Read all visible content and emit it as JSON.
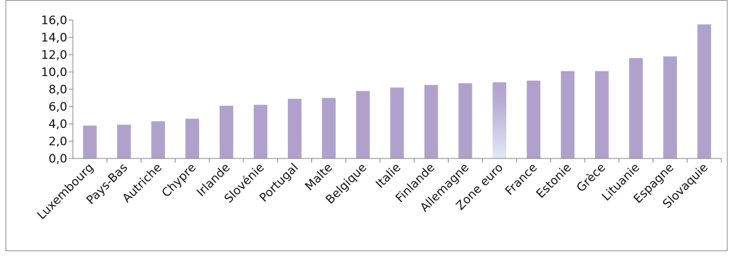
{
  "chart_data": {
    "type": "bar",
    "categories": [
      "Luxembourg",
      "Pays-Bas",
      "Autriche",
      "Chypre",
      "Irlande",
      "Slovénie",
      "Portugal",
      "Malte",
      "Belgique",
      "Italie",
      "Finlande",
      "Allemagne",
      "Zone euro",
      "France",
      "Estonie",
      "Grèce",
      "Lituanie",
      "Espagne",
      "Slovaquie"
    ],
    "values": [
      3.8,
      3.9,
      4.3,
      4.6,
      6.1,
      6.2,
      6.9,
      7.0,
      7.8,
      8.2,
      8.5,
      8.7,
      8.8,
      9.0,
      10.1,
      10.1,
      11.6,
      11.8,
      15.5
    ],
    "ylim": [
      0,
      16
    ],
    "yticks": [
      "0,0",
      "2,0",
      "4,0",
      "6,0",
      "8,0",
      "10,0",
      "12,0",
      "14,0",
      "16,0"
    ],
    "ytick_step": 2,
    "grid": false,
    "legend": "none",
    "title": "",
    "xlabel": "",
    "ylabel": "",
    "colors": {
      "bar": "#b0a1cc",
      "highlight_top": "#b3a4cf",
      "highlight_bottom": "#dfe9f7",
      "axis": "#808080",
      "frame": "#8c8c8c"
    },
    "highlight_category": "Zone euro"
  }
}
